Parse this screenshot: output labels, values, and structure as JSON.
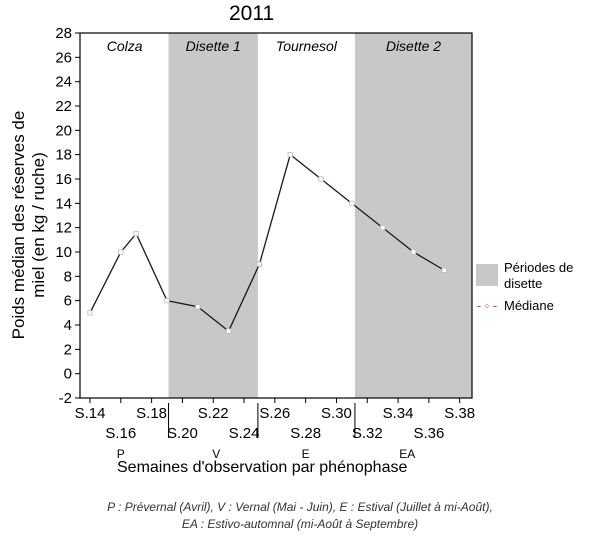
{
  "chart_data": {
    "type": "line",
    "title": "2011",
    "ylabel": "Poids médian des réserves de miel (en kg / ruche)",
    "xlabel": "Semaines d'observation par phénophase",
    "ylim": [
      -2,
      28
    ],
    "yticks": [
      -2,
      0,
      2,
      4,
      6,
      8,
      10,
      12,
      14,
      16,
      18,
      20,
      22,
      24,
      26,
      28
    ],
    "grid": false,
    "x_ticks": [
      "S.14",
      "S.16",
      "S.18",
      "S.20",
      "S.22",
      "S.24",
      "S.26",
      "S.28",
      "S.30",
      "S.32",
      "S.34",
      "S.36",
      "S.38"
    ],
    "series": [
      {
        "name": "Médiane",
        "x": [
          "S.14",
          "S.16",
          "S.17",
          "S.19",
          "S.21",
          "S.23",
          "S.25",
          "S.27",
          "S.29",
          "S.31",
          "S.33",
          "S.35",
          "S.37"
        ],
        "values": [
          5,
          10,
          11.5,
          6,
          5.5,
          3.5,
          9,
          18,
          16,
          14,
          12,
          10,
          8.5
        ]
      }
    ],
    "periods": [
      {
        "label": "Colza",
        "shaded": false
      },
      {
        "label": "Disette 1",
        "shaded": true
      },
      {
        "label": "Tournesol",
        "shaded": false
      },
      {
        "label": "Disette 2",
        "shaded": true
      }
    ],
    "phenophases": [
      "P",
      "V",
      "E",
      "EA"
    ],
    "legend": {
      "position": "right",
      "entries": [
        {
          "label": "Périodes de disette",
          "kind": "shaded-area",
          "color": "#c8c8c8"
        },
        {
          "label": "Médiane",
          "kind": "line-marker",
          "color": "#d23a1e"
        }
      ]
    },
    "footnote": [
      "P : Prévernal (Avril), V : Vernal (Mai - Juin), E : Estival (Juillet à mi-Août),",
      "EA : Estivo-automnal (mi-Août à Septembre)"
    ]
  }
}
